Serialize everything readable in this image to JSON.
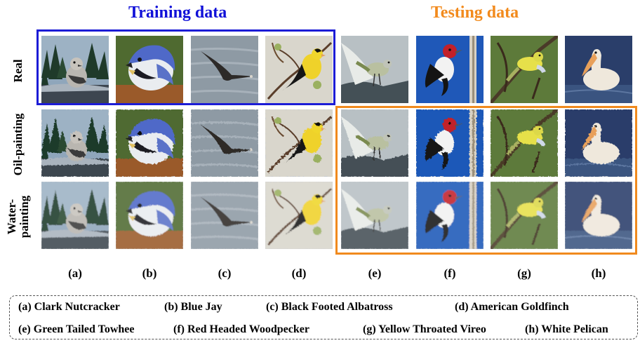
{
  "titles": {
    "training": "Training data",
    "testing": "Testing data"
  },
  "colors": {
    "training": "#1c1cd6",
    "testing": "#f08a1e"
  },
  "row_labels": [
    "Real",
    "Oil-painting",
    "Water-\npainting"
  ],
  "column_labels": [
    "(a)",
    "(b)",
    "(c)",
    "(d)",
    "(e)",
    "(f)",
    "(g)",
    "(h)"
  ],
  "legend": [
    "(a) Clark Nutcracker",
    "(b) Blue Jay",
    "(c) Black Footed Albatross",
    "(d) American Goldfinch",
    "(e) Green Tailed Towhee",
    "(f) Red Headed Woodpecker",
    "(g) Yellow Throated Vireo",
    "(h) White Pelican"
  ],
  "image_subjects": [
    "clark-nutcracker",
    "blue-jay",
    "black-footed-albatross",
    "american-goldfinch",
    "green-tailed-towhee",
    "red-headed-woodpecker",
    "yellow-throated-vireo",
    "white-pelican"
  ],
  "image_styles": [
    "real",
    "oil-painting",
    "water-painting"
  ]
}
